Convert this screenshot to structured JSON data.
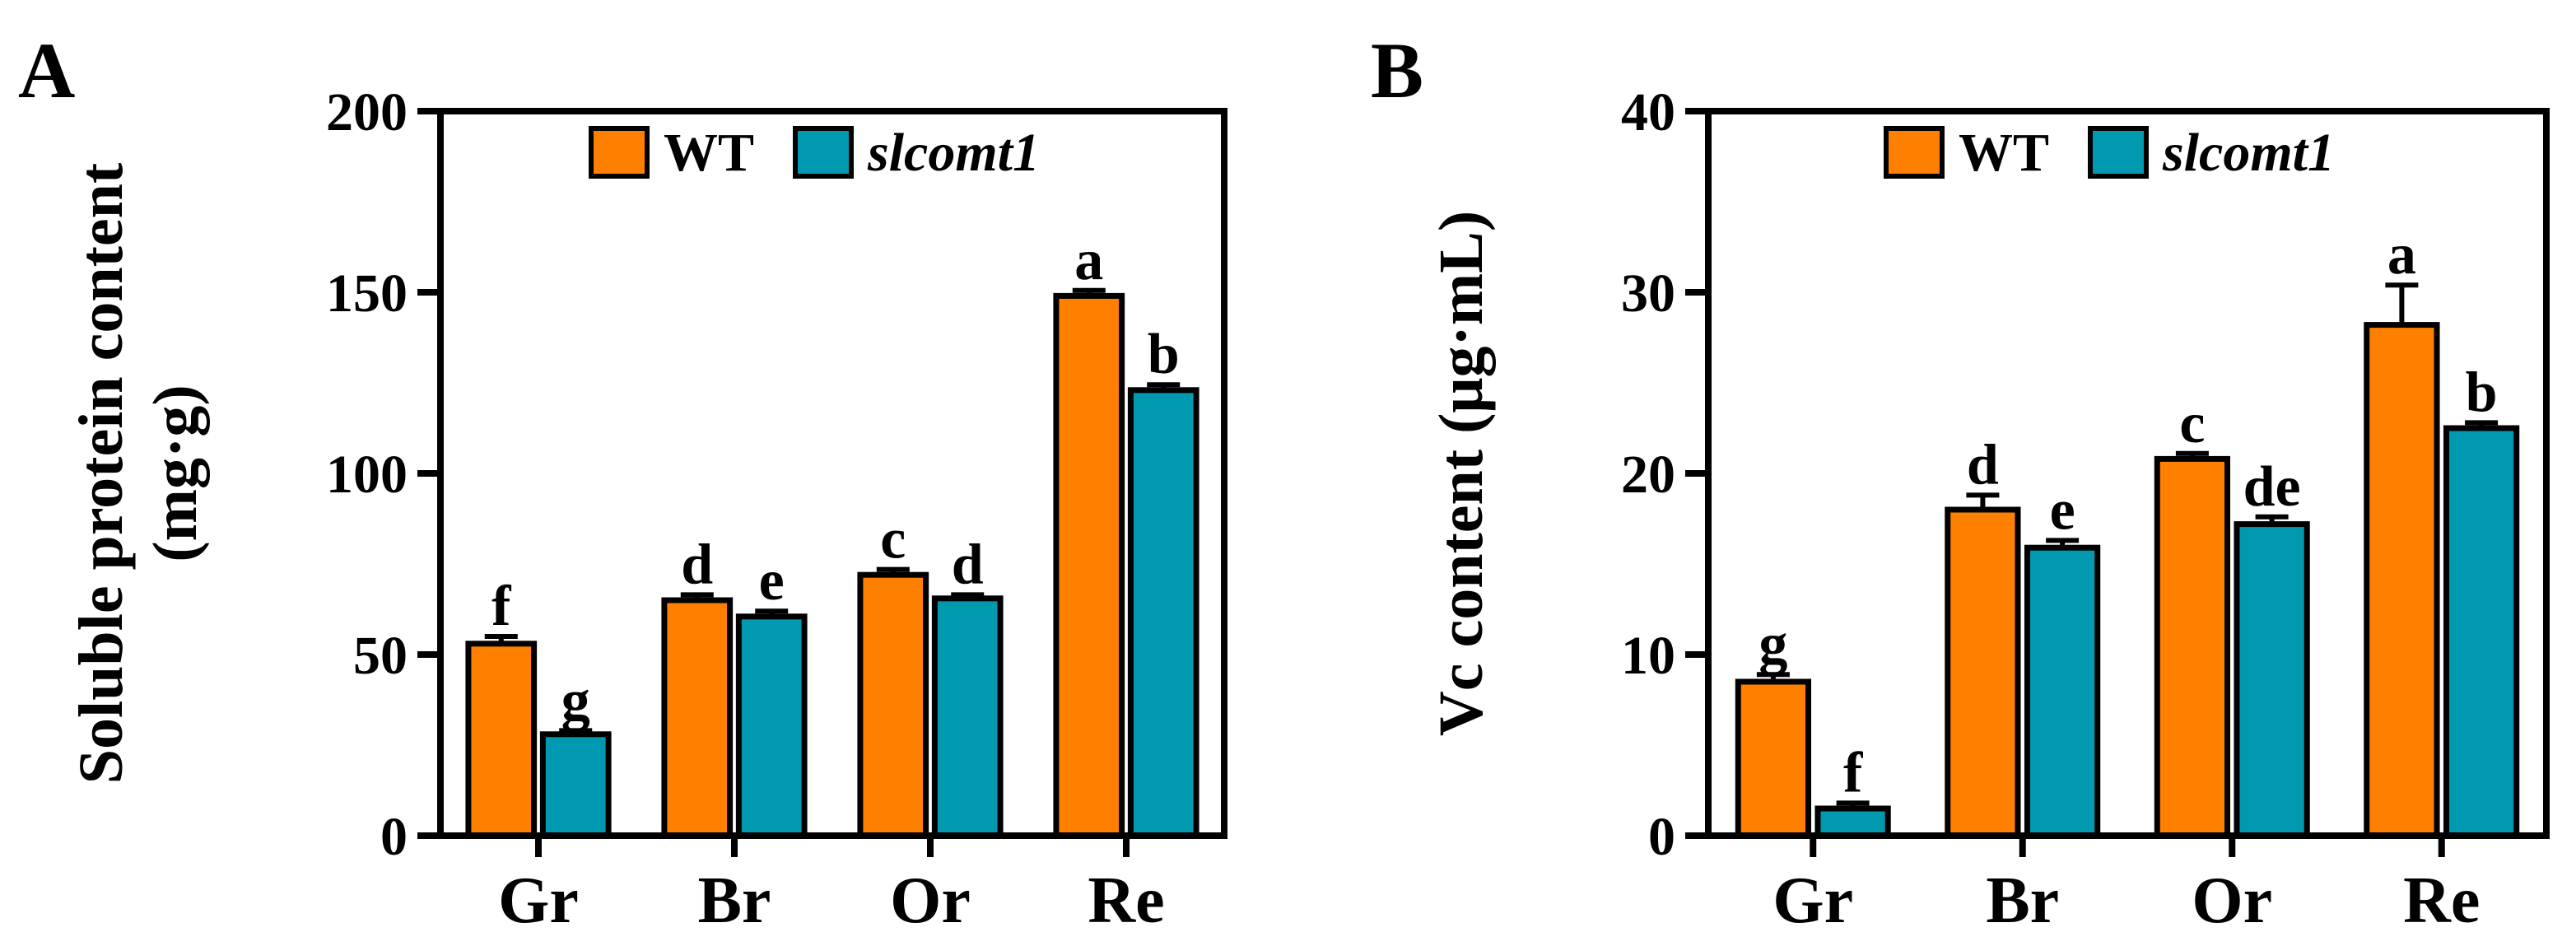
{
  "chart_data": [
    {
      "type": "bar",
      "panel_label": "A",
      "categories": [
        "Gr",
        "Br",
        "Or",
        "Re"
      ],
      "ylabel": [
        "Soluble protein content",
        "(mg·g)"
      ],
      "ylim": [
        0,
        200
      ],
      "yticks": [
        0,
        50,
        100,
        150,
        200
      ],
      "series": [
        {
          "name": "WT",
          "italic": false,
          "color": "#FF7F00",
          "values": [
            53,
            65,
            72,
            149
          ],
          "errors": [
            2,
            1.5,
            1.5,
            1.5
          ],
          "letters": [
            "f",
            "d",
            "c",
            "a"
          ]
        },
        {
          "name": "slcomt1",
          "italic": true,
          "color": "#0099B0",
          "values": [
            28,
            60.5,
            65.5,
            123
          ],
          "errors": [
            1,
            1.5,
            1,
            1.5
          ],
          "letters": [
            "g",
            "e",
            "d",
            "b"
          ]
        }
      ],
      "legend_position": "top-center"
    },
    {
      "type": "bar",
      "panel_label": "B",
      "categories": [
        "Gr",
        "Br",
        "Or",
        "Re"
      ],
      "ylabel": [
        "Vc content (μg·mL)"
      ],
      "ylim": [
        0,
        40
      ],
      "yticks": [
        0,
        10,
        20,
        30,
        40
      ],
      "series": [
        {
          "name": "WT",
          "italic": false,
          "color": "#FF7F00",
          "values": [
            8.5,
            18,
            20.8,
            28.2
          ],
          "errors": [
            0.4,
            0.8,
            0.3,
            2.2
          ],
          "letters": [
            "g",
            "d",
            "c",
            "a"
          ]
        },
        {
          "name": "slcomt1",
          "italic": true,
          "color": "#0099B0",
          "values": [
            1.5,
            15.9,
            17.2,
            22.5
          ],
          "errors": [
            0.3,
            0.4,
            0.4,
            0.3
          ],
          "letters": [
            "f",
            "e",
            "de",
            "b"
          ]
        }
      ],
      "legend_position": "top-center"
    }
  ]
}
